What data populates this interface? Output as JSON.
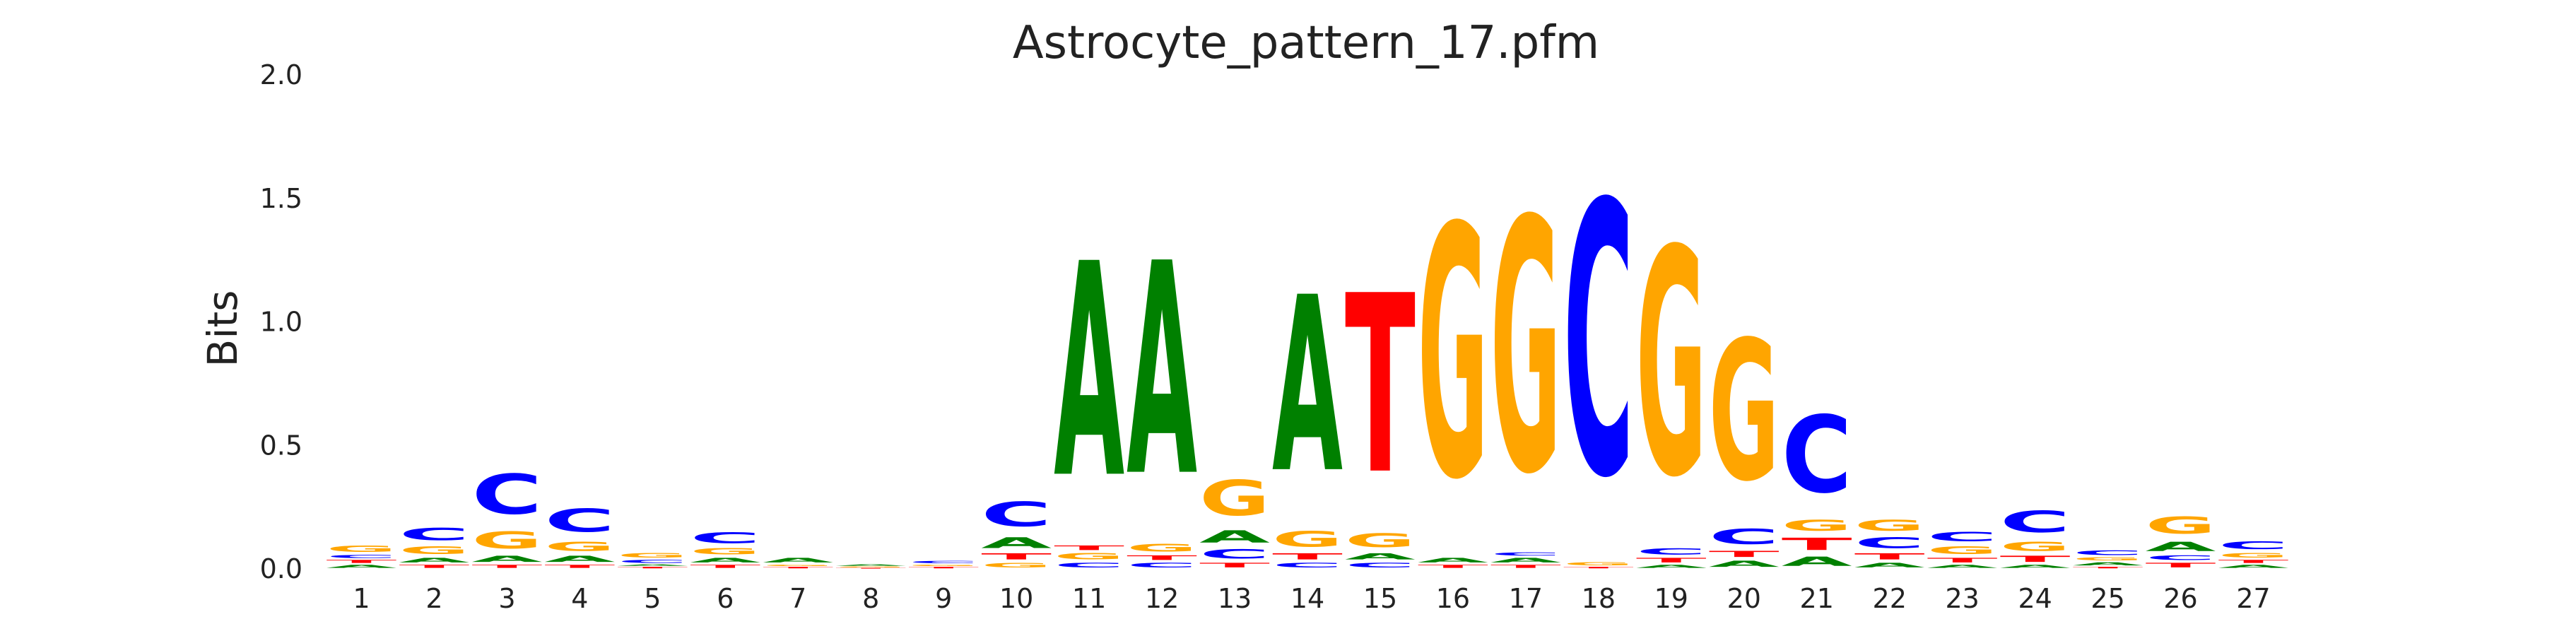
{
  "chart_data": {
    "type": "sequence-logo",
    "title": "Astrocyte_pattern_17.pfm",
    "xlabel": "",
    "ylabel": "Bits",
    "ylim": [
      0,
      2.0
    ],
    "yticks": [
      "0.0",
      "0.5",
      "1.0",
      "1.5",
      "2.0"
    ],
    "grid": false,
    "colors": {
      "A": "#008000",
      "C": "#0000ff",
      "G": "#ffa500",
      "T": "#ff0000"
    },
    "positions": [
      {
        "label": "1",
        "stack": [
          [
            "A",
            0.02
          ],
          [
            "T",
            0.02
          ],
          [
            "C",
            0.02
          ],
          [
            "G",
            0.04
          ]
        ]
      },
      {
        "label": "2",
        "stack": [
          [
            "T",
            0.02
          ],
          [
            "A",
            0.03
          ],
          [
            "G",
            0.05
          ],
          [
            "C",
            0.08
          ]
        ]
      },
      {
        "label": "3",
        "stack": [
          [
            "T",
            0.02
          ],
          [
            "A",
            0.04
          ],
          [
            "G",
            0.11
          ],
          [
            "C",
            0.26
          ]
        ]
      },
      {
        "label": "4",
        "stack": [
          [
            "T",
            0.02
          ],
          [
            "A",
            0.04
          ],
          [
            "G",
            0.06
          ],
          [
            "C",
            0.15
          ]
        ]
      },
      {
        "label": "5",
        "stack": [
          [
            "T",
            0.01
          ],
          [
            "A",
            0.01
          ],
          [
            "C",
            0.02
          ],
          [
            "G",
            0.03
          ]
        ]
      },
      {
        "label": "6",
        "stack": [
          [
            "T",
            0.02
          ],
          [
            "A",
            0.03
          ],
          [
            "G",
            0.04
          ],
          [
            "C",
            0.07
          ]
        ]
      },
      {
        "label": "7",
        "stack": [
          [
            "T",
            0.01
          ],
          [
            "G",
            0.01
          ],
          [
            "A",
            0.03
          ]
        ]
      },
      {
        "label": "8",
        "stack": [
          [
            "T",
            0.005
          ],
          [
            "G",
            0.005
          ],
          [
            "A",
            0.01
          ]
        ]
      },
      {
        "label": "9",
        "stack": [
          [
            "T",
            0.01
          ],
          [
            "G",
            0.01
          ],
          [
            "C",
            0.015
          ]
        ]
      },
      {
        "label": "10",
        "stack": [
          [
            "G",
            0.03
          ],
          [
            "T",
            0.04
          ],
          [
            "A",
            0.07
          ],
          [
            "C",
            0.16
          ]
        ]
      },
      {
        "label": "11",
        "stack": [
          [
            "C",
            0.03
          ],
          [
            "G",
            0.04
          ],
          [
            "T",
            0.03
          ],
          [
            "A",
            1.39
          ]
        ]
      },
      {
        "label": "12",
        "stack": [
          [
            "C",
            0.03
          ],
          [
            "T",
            0.03
          ],
          [
            "G",
            0.05
          ],
          [
            "A",
            1.38
          ]
        ]
      },
      {
        "label": "13",
        "stack": [
          [
            "T",
            0.03
          ],
          [
            "C",
            0.06
          ],
          [
            "A",
            0.08
          ],
          [
            "G",
            0.23
          ]
        ]
      },
      {
        "label": "14",
        "stack": [
          [
            "C",
            0.03
          ],
          [
            "T",
            0.04
          ],
          [
            "G",
            0.1
          ],
          [
            "A",
            1.14
          ]
        ]
      },
      {
        "label": "15",
        "stack": [
          [
            "C",
            0.03
          ],
          [
            "A",
            0.04
          ],
          [
            "G",
            0.09
          ],
          [
            "T",
            1.16
          ]
        ]
      },
      {
        "label": "16",
        "stack": [
          [
            "T",
            0.02
          ],
          [
            "A",
            0.03
          ],
          [
            "G",
            1.63
          ]
        ]
      },
      {
        "label": "17",
        "stack": [
          [
            "T",
            0.02
          ],
          [
            "A",
            0.03
          ],
          [
            "C",
            0.02
          ],
          [
            "G",
            1.64
          ]
        ]
      },
      {
        "label": "18",
        "stack": [
          [
            "T",
            0.01
          ],
          [
            "G",
            0.02
          ],
          [
            "C",
            1.77
          ]
        ]
      },
      {
        "label": "19",
        "stack": [
          [
            "A",
            0.02
          ],
          [
            "T",
            0.03
          ],
          [
            "C",
            0.04
          ],
          [
            "G",
            1.47
          ]
        ]
      },
      {
        "label": "20",
        "stack": [
          [
            "A",
            0.04
          ],
          [
            "T",
            0.04
          ],
          [
            "C",
            0.1
          ],
          [
            "G",
            0.91
          ]
        ]
      },
      {
        "label": "21",
        "stack": [
          [
            "A",
            0.06
          ],
          [
            "T",
            0.08
          ],
          [
            "G",
            0.07
          ],
          [
            "C",
            0.5
          ]
        ]
      },
      {
        "label": "22",
        "stack": [
          [
            "A",
            0.03
          ],
          [
            "T",
            0.04
          ],
          [
            "C",
            0.07
          ],
          [
            "G",
            0.07
          ]
        ]
      },
      {
        "label": "23",
        "stack": [
          [
            "A",
            0.02
          ],
          [
            "T",
            0.03
          ],
          [
            "G",
            0.05
          ],
          [
            "C",
            0.06
          ]
        ]
      },
      {
        "label": "24",
        "stack": [
          [
            "A",
            0.02
          ],
          [
            "T",
            0.04
          ],
          [
            "G",
            0.06
          ],
          [
            "C",
            0.14
          ]
        ]
      },
      {
        "label": "25",
        "stack": [
          [
            "T",
            0.01
          ],
          [
            "A",
            0.02
          ],
          [
            "G",
            0.02
          ],
          [
            "C",
            0.03
          ]
        ]
      },
      {
        "label": "26",
        "stack": [
          [
            "T",
            0.03
          ],
          [
            "C",
            0.03
          ],
          [
            "A",
            0.06
          ],
          [
            "G",
            0.11
          ]
        ]
      },
      {
        "label": "27",
        "stack": [
          [
            "A",
            0.02
          ],
          [
            "T",
            0.02
          ],
          [
            "G",
            0.03
          ],
          [
            "C",
            0.05
          ]
        ]
      }
    ]
  }
}
